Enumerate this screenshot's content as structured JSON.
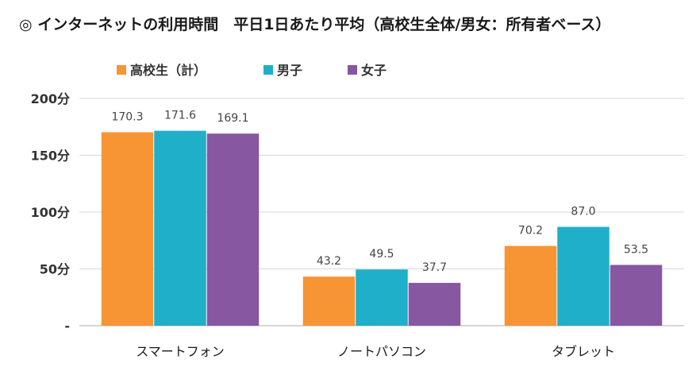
{
  "chart_data": {
    "type": "bar",
    "title": "◎ インターネットの利用時間　平日1日あたり平均（高校生全体/男女：所有者ベース）",
    "categories": [
      "スマートフォン",
      "ノートパソコン",
      "タブレット"
    ],
    "series": [
      {
        "name": "高校生（計）",
        "color": "#F79433",
        "values": [
          170.3,
          43.2,
          70.2
        ]
      },
      {
        "name": "男子",
        "color": "#1FAFC8",
        "values": [
          171.6,
          49.5,
          87.0
        ]
      },
      {
        "name": "女子",
        "color": "#8757A2",
        "values": [
          169.1,
          37.7,
          53.5
        ]
      }
    ],
    "y_ticks": [
      {
        "value": 0,
        "label": "-"
      },
      {
        "value": 50,
        "label": "50分"
      },
      {
        "value": 100,
        "label": "100分"
      },
      {
        "value": 150,
        "label": "150分"
      },
      {
        "value": 200,
        "label": "200分"
      }
    ],
    "ylim": [
      0,
      200
    ],
    "grid": true,
    "legend_position": "top-left",
    "xlabel": "",
    "ylabel": ""
  }
}
